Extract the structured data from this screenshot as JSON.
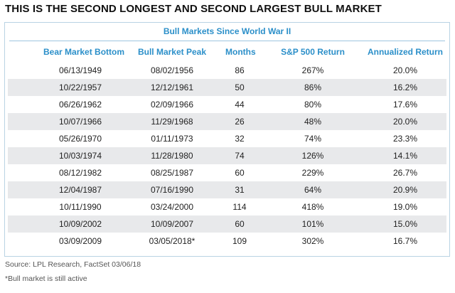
{
  "headline": "THIS IS THE SECOND LONGEST AND SECOND LARGEST BULL MARKET",
  "chart_data": {
    "type": "table",
    "title": "Bull Markets Since World War II",
    "columns": [
      "Bear Market Bottom",
      "Bull Market Peak",
      "Months",
      "S&P 500 Return",
      "Annualized Return"
    ],
    "rows": [
      [
        "06/13/1949",
        "08/02/1956",
        "86",
        "267%",
        "20.0%"
      ],
      [
        "10/22/1957",
        "12/12/1961",
        "50",
        "86%",
        "16.2%"
      ],
      [
        "06/26/1962",
        "02/09/1966",
        "44",
        "80%",
        "17.6%"
      ],
      [
        "10/07/1966",
        "11/29/1968",
        "26",
        "48%",
        "20.0%"
      ],
      [
        "05/26/1970",
        "01/11/1973",
        "32",
        "74%",
        "23.3%"
      ],
      [
        "10/03/1974",
        "11/28/1980",
        "74",
        "126%",
        "14.1%"
      ],
      [
        "08/12/1982",
        "08/25/1987",
        "60",
        "229%",
        "26.7%"
      ],
      [
        "12/04/1987",
        "07/16/1990",
        "31",
        "64%",
        "20.9%"
      ],
      [
        "10/11/1990",
        "03/24/2000",
        "114",
        "418%",
        "19.0%"
      ],
      [
        "10/09/2002",
        "10/09/2007",
        "60",
        "101%",
        "15.0%"
      ],
      [
        "03/09/2009",
        "03/05/2018*",
        "109",
        "302%",
        "16.7%"
      ]
    ],
    "colors": {
      "header_text": "#2b8fc9",
      "stripe": "#e8e9eb",
      "border": "#b9d3e4"
    }
  },
  "source": "Source: LPL Research, FactSet 03/06/18",
  "footnote": "*Bull market is still active"
}
